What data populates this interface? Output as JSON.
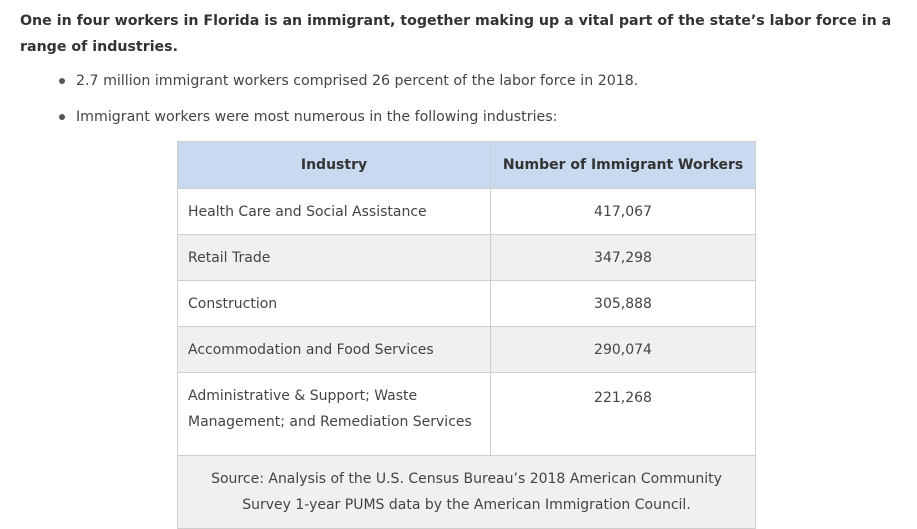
{
  "heading": "One in four workers in Florida is an immigrant, together making up a vital part of the state’s labor force in a range of industries.",
  "bullets": [
    "2.7 million immigrant workers comprised 26 percent of the labor force in 2018.",
    "Immigrant workers were most numerous in the following industries:"
  ],
  "table": {
    "headers": [
      "Industry",
      "Number of Immigrant Workers"
    ],
    "rows": [
      {
        "industry": "Health Care and Social Assistance",
        "count": "417,067"
      },
      {
        "industry": "Retail Trade",
        "count": "347,298"
      },
      {
        "industry": "Construction",
        "count": "305,888"
      },
      {
        "industry": "Accommodation and Food Services",
        "count": "290,074"
      },
      {
        "industry": "Administrative & Support; Waste Management; and Remediation Services",
        "count": "221,268"
      }
    ],
    "source": "Source: Analysis of the U.S. Census Bureau’s 2018 American Community Survey 1-year PUMS data by the American Immigration Council."
  },
  "colors": {
    "header_bg": "#c9daf0",
    "stripe_bg": "#f0f0f0",
    "border": "#cfcfcf"
  }
}
